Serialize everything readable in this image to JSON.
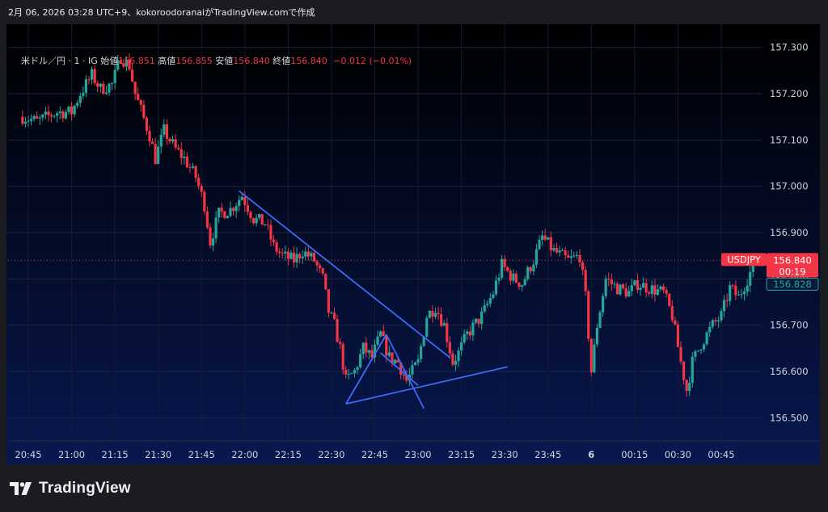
{
  "header": {
    "caption": "2月 06, 2026 03:28 UTC+9、kokoroodoranaiがTradingView.comで作成"
  },
  "legend": {
    "symbol": "米ドル／円 · 1 · IG",
    "open_label": "始値",
    "open": "156.851",
    "high_label": "高値",
    "high": "156.855",
    "low_label": "安値",
    "low": "156.840",
    "close_label": "終値",
    "close": "156.840",
    "change": "−0.012 (−0.01%)"
  },
  "price_labels": {
    "symbol": "USDJPY",
    "last": "156.840",
    "countdown": "00:19",
    "second": "156.828"
  },
  "footer": {
    "brand": "TradingView",
    "logo_icon": "tradingview-logo-icon"
  },
  "colors": {
    "up": "#26a69a",
    "down": "#f23645",
    "trendline": "#3d6bf5",
    "bg_top": "#000000",
    "bg_bottom": "#081850"
  },
  "chart_data": {
    "type": "candlestick",
    "title": "",
    "xlabel": "",
    "ylabel": "",
    "interval": "1 minute",
    "ylim": [
      156.45,
      157.35
    ],
    "grid": true,
    "y_ticks": [
      "157.300",
      "157.200",
      "157.100",
      "157.000",
      "156.900",
      "156.800",
      "156.700",
      "156.600",
      "156.500"
    ],
    "x_ticks": [
      "20:45",
      "21:00",
      "21:15",
      "21:30",
      "21:45",
      "22:00",
      "22:15",
      "22:30",
      "22:45",
      "23:00",
      "23:15",
      "23:30",
      "23:45",
      "6",
      "00:15",
      "00:30",
      "00:45"
    ],
    "last_price": 156.84,
    "last_price_2": 156.828,
    "trendlines": [
      {
        "from": [
          "21:58",
          156.99
        ],
        "to": [
          "23:11",
          156.63
        ]
      },
      {
        "from": [
          "22:35",
          156.53
        ],
        "to": [
          "23:31",
          156.61
        ]
      },
      {
        "from": [
          "22:35",
          156.53
        ],
        "to": [
          "22:49",
          156.68
        ]
      },
      {
        "from": [
          "22:49",
          156.68
        ],
        "to": [
          "23:02",
          156.52
        ]
      },
      {
        "from": [
          "22:47",
          156.64
        ],
        "to": [
          "23:00",
          156.57
        ]
      }
    ],
    "path": [
      [
        "20:43",
        157.15
      ],
      [
        "20:48",
        157.14
      ],
      [
        "20:55",
        157.16
      ],
      [
        "21:00",
        157.16
      ],
      [
        "21:03",
        157.2
      ],
      [
        "21:07",
        157.24
      ],
      [
        "21:10",
        157.21
      ],
      [
        "21:14",
        157.22
      ],
      [
        "21:17",
        157.28
      ],
      [
        "21:20",
        157.26
      ],
      [
        "21:22",
        157.2
      ],
      [
        "21:27",
        157.11
      ],
      [
        "21:29",
        157.06
      ],
      [
        "21:32",
        157.12
      ],
      [
        "21:36",
        157.08
      ],
      [
        "21:39",
        157.06
      ],
      [
        "21:43",
        157.02
      ],
      [
        "21:46",
        156.96
      ],
      [
        "21:48",
        156.88
      ],
      [
        "21:51",
        156.94
      ],
      [
        "21:55",
        156.95
      ],
      [
        "21:59",
        156.98
      ],
      [
        "22:03",
        156.93
      ],
      [
        "22:07",
        156.92
      ],
      [
        "22:10",
        156.87
      ],
      [
        "22:13",
        156.85
      ],
      [
        "22:17",
        156.84
      ],
      [
        "22:20",
        156.86
      ],
      [
        "22:24",
        156.84
      ],
      [
        "22:27",
        156.8
      ],
      [
        "22:29",
        156.73
      ],
      [
        "22:31",
        156.7
      ],
      [
        "22:33",
        156.65
      ],
      [
        "22:35",
        156.58
      ],
      [
        "22:38",
        156.6
      ],
      [
        "22:41",
        156.65
      ],
      [
        "22:44",
        156.63
      ],
      [
        "22:47",
        156.68
      ],
      [
        "22:50",
        156.63
      ],
      [
        "22:53",
        156.62
      ],
      [
        "22:56",
        156.58
      ],
      [
        "23:00",
        156.62
      ],
      [
        "23:03",
        156.72
      ],
      [
        "23:06",
        156.74
      ],
      [
        "23:09",
        156.7
      ],
      [
        "23:12",
        156.62
      ],
      [
        "23:14",
        156.64
      ],
      [
        "23:17",
        156.68
      ],
      [
        "23:22",
        156.72
      ],
      [
        "23:26",
        156.77
      ],
      [
        "23:29",
        156.83
      ],
      [
        "23:33",
        156.8
      ],
      [
        "23:36",
        156.79
      ],
      [
        "23:40",
        156.84
      ],
      [
        "23:43",
        156.89
      ],
      [
        "23:47",
        156.86
      ],
      [
        "23:52",
        156.84
      ],
      [
        "23:56",
        156.85
      ],
      [
        "23:58",
        156.76
      ],
      [
        "00:00",
        156.6
      ],
      [
        "00:02",
        156.7
      ],
      [
        "00:05",
        156.8
      ],
      [
        "00:09",
        156.78
      ],
      [
        "00:13",
        156.77
      ],
      [
        "00:16",
        156.79
      ],
      [
        "00:20",
        156.78
      ],
      [
        "00:25",
        156.77
      ],
      [
        "00:28",
        156.72
      ],
      [
        "00:31",
        156.62
      ],
      [
        "00:33",
        156.56
      ],
      [
        "00:35",
        156.62
      ],
      [
        "00:38",
        156.66
      ],
      [
        "00:42",
        156.7
      ],
      [
        "00:45",
        156.72
      ],
      [
        "00:48",
        156.78
      ],
      [
        "00:51",
        156.76
      ],
      [
        "00:54",
        156.8
      ],
      [
        "00:57",
        156.84
      ],
      [
        "00:58",
        156.84
      ]
    ]
  }
}
